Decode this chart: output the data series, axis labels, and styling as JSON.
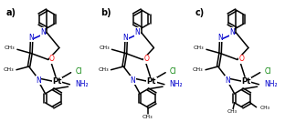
{
  "background_color": "#ffffff",
  "labels": [
    "a)",
    "b)",
    "c)"
  ],
  "atom_colors": {
    "N": "#0000cc",
    "O": "#ff0000",
    "Cl": "#008000",
    "Pt": "#000000",
    "C": "#000000"
  },
  "figsize": [
    3.12,
    1.34
  ],
  "dpi": 100
}
